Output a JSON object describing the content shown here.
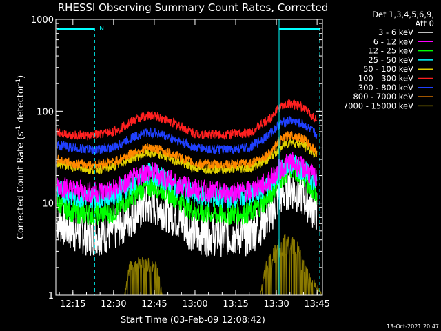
{
  "chart_data": {
    "type": "line",
    "title": "RHESSI Observing Summary Count Rates, Corrected",
    "xlabel": "Start Time (03-Feb-09 12:08:42)",
    "ylabel": "Corrected Count Rate (s",
    "ylabel_sup1": "-1",
    "ylabel_mid": " detector",
    "ylabel_sup2": "-1",
    "ylabel_end": ")",
    "y_scale": "log",
    "ylim": [
      1,
      1000
    ],
    "xlim": [
      "12:08:42",
      "13:47:00"
    ],
    "x_ticks": [
      "12:15",
      "12:30",
      "12:45",
      "13:00",
      "13:15",
      "13:30",
      "13:45"
    ],
    "y_ticks": [
      "1",
      "10",
      "100",
      "1000"
    ],
    "legend": {
      "title_line1": "Det 1,3,4,5,6,9,",
      "title_line2": "Att 0",
      "placement": "right"
    },
    "series": [
      {
        "name": "3 - 6 keV",
        "color": "#ffffff",
        "x": [
          "12:09",
          "12:15",
          "12:22",
          "12:30",
          "12:37",
          "12:42",
          "12:46",
          "12:52",
          "13:00",
          "13:10",
          "13:20",
          "13:27",
          "13:31",
          "13:35",
          "13:40",
          "13:45"
        ],
        "values": [
          6.5,
          5.0,
          4.5,
          5.0,
          7.5,
          9.5,
          9.5,
          7.5,
          4.8,
          4.5,
          4.6,
          7.0,
          12.0,
          15.0,
          12.0,
          8.0
        ]
      },
      {
        "name": "6 - 12 keV",
        "color": "#ff00ff",
        "x": [
          "12:09",
          "12:15",
          "12:22",
          "12:30",
          "12:37",
          "12:42",
          "12:46",
          "12:52",
          "13:00",
          "13:10",
          "13:20",
          "13:27",
          "13:31",
          "13:35",
          "13:40",
          "13:45"
        ],
        "values": [
          16,
          14,
          13,
          14,
          18,
          22,
          21,
          17,
          14,
          13,
          13.5,
          17,
          23,
          28,
          24,
          18
        ]
      },
      {
        "name": "12 - 25 keV",
        "color": "#00ff00",
        "x": [
          "12:09",
          "12:15",
          "12:22",
          "12:30",
          "12:37",
          "12:42",
          "12:46",
          "12:52",
          "13:00",
          "13:10",
          "13:20",
          "13:27",
          "13:31",
          "13:35",
          "13:40",
          "13:45"
        ],
        "values": [
          10,
          8,
          7.5,
          8,
          12,
          15,
          15,
          12,
          8,
          7.5,
          7.8,
          11,
          18,
          24,
          20,
          12
        ]
      },
      {
        "name": "25 - 50 keV",
        "color": "#00ffff",
        "x": [
          "12:09",
          "12:15",
          "12:22",
          "12:30",
          "12:37",
          "12:42",
          "12:46",
          "12:52",
          "13:00",
          "13:10",
          "13:20",
          "13:27",
          "13:31",
          "13:35",
          "13:40",
          "13:45"
        ],
        "values": [
          14,
          12,
          11.5,
          12.5,
          16,
          21,
          20,
          16,
          12,
          11.5,
          12,
          15,
          22,
          27,
          23,
          16
        ]
      },
      {
        "name": "50 - 100 keV",
        "color": "#e0d000",
        "x": [
          "12:09",
          "12:15",
          "12:22",
          "12:30",
          "12:37",
          "12:42",
          "12:46",
          "12:52",
          "13:00",
          "13:10",
          "13:20",
          "13:27",
          "13:31",
          "13:35",
          "13:40",
          "13:45"
        ],
        "values": [
          27,
          25,
          23,
          25,
          31,
          35,
          34,
          30,
          24,
          23.5,
          24,
          30,
          39,
          47,
          43,
          33
        ]
      },
      {
        "name": "100 - 300 keV",
        "color": "#ff2020",
        "x": [
          "12:09",
          "12:15",
          "12:22",
          "12:30",
          "12:37",
          "12:42",
          "12:46",
          "12:52",
          "13:00",
          "13:10",
          "13:20",
          "13:27",
          "13:31",
          "13:35",
          "13:40",
          "13:45"
        ],
        "values": [
          60,
          55,
          54,
          60,
          78,
          90,
          88,
          75,
          57,
          56,
          58,
          80,
          110,
          122,
          110,
          80
        ]
      },
      {
        "name": "300 - 800 keV",
        "color": "#2040ff",
        "x": [
          "12:09",
          "12:15",
          "12:22",
          "12:30",
          "12:37",
          "12:42",
          "12:46",
          "12:52",
          "13:00",
          "13:10",
          "13:20",
          "13:27",
          "13:31",
          "13:35",
          "13:40",
          "13:45"
        ],
        "values": [
          43,
          40,
          38,
          40,
          52,
          59,
          58,
          50,
          40,
          38,
          40,
          55,
          72,
          80,
          72,
          55
        ]
      },
      {
        "name": "800 - 7000 keV",
        "color": "#ff8800",
        "x": [
          "12:09",
          "12:15",
          "12:22",
          "12:30",
          "12:37",
          "12:42",
          "12:46",
          "12:52",
          "13:00",
          "13:10",
          "13:20",
          "13:27",
          "13:31",
          "13:35",
          "13:40",
          "13:45"
        ],
        "values": [
          30,
          27,
          26,
          28,
          35,
          40,
          39,
          34,
          27,
          26,
          27,
          34,
          47,
          56,
          50,
          36
        ]
      },
      {
        "name": "7000 - 15000 keV",
        "color": "#8b7a00",
        "x": [
          "12:09",
          "12:20",
          "12:30",
          "12:34",
          "12:36",
          "12:41",
          "12:46",
          "12:48",
          "12:53",
          "13:20",
          "13:24",
          "13:26",
          "13:30",
          "13:32",
          "13:35",
          "13:38",
          "13:40",
          "13:47"
        ],
        "values": [
          1,
          1,
          1,
          1,
          2,
          2.2,
          2,
          1,
          1,
          1,
          1,
          2,
          3,
          3.5,
          3.8,
          3,
          2,
          1
        ]
      }
    ],
    "annotations": {
      "attenuator_marker": "N",
      "night_intervals": [
        [
          "12:09",
          "12:23"
        ],
        [
          "13:31",
          "13:46"
        ]
      ],
      "night_color": "#00ffff"
    },
    "timestamp": "13-Oct-2021 20:47"
  }
}
